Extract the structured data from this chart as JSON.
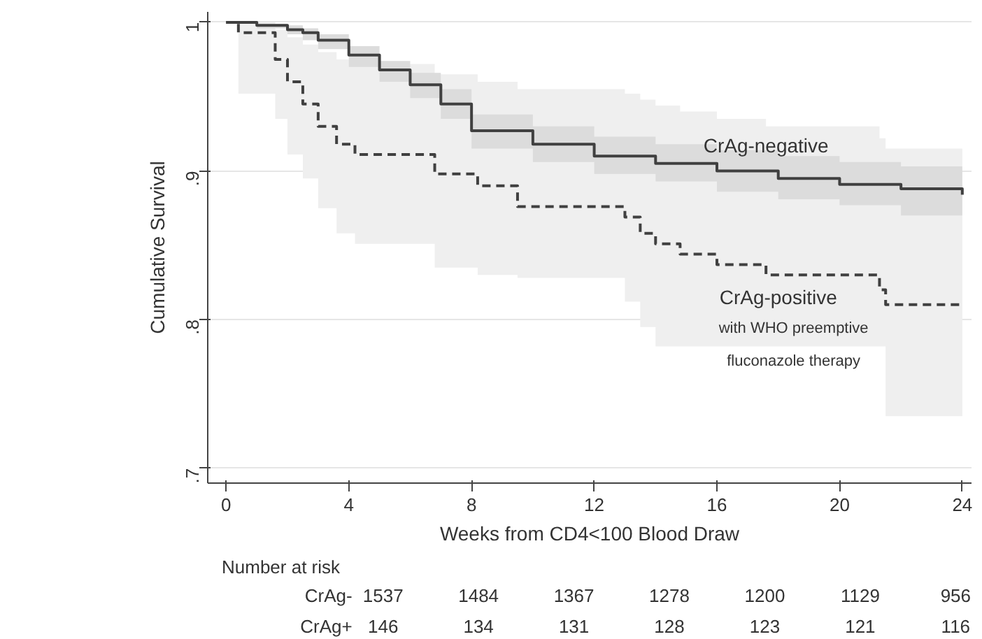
{
  "chart_data": {
    "type": "step",
    "xlabel": "Weeks from CD4<100 Blood Draw",
    "ylabel": "Cumulative Survival",
    "xlim": [
      -0.6,
      24.3
    ],
    "ylim": [
      0.69,
      1.007
    ],
    "xticks": [
      0,
      4,
      8,
      12,
      16,
      20,
      24
    ],
    "yticks": [
      {
        "value": 0.7,
        "label": ".7"
      },
      {
        "value": 0.8,
        "label": ".8"
      },
      {
        "value": 0.9,
        "label": ".9"
      },
      1
    ],
    "grid": "y",
    "series": [
      {
        "name": "CrAg-negative",
        "color": "#404040",
        "line_style": "solid",
        "x": [
          0,
          1,
          2,
          2.5,
          3,
          4,
          5,
          6,
          7,
          8,
          10,
          12,
          14,
          16,
          18,
          20,
          22,
          24
        ],
        "values": [
          1,
          0.998,
          0.995,
          0.993,
          0.988,
          0.978,
          0.968,
          0.958,
          0.945,
          0.927,
          0.918,
          0.91,
          0.905,
          0.9,
          0.895,
          0.891,
          0.888,
          0.884
        ],
        "upper": [
          1,
          0.999,
          0.998,
          0.996,
          0.992,
          0.984,
          0.974,
          0.966,
          0.955,
          0.938,
          0.93,
          0.923,
          0.918,
          0.914,
          0.91,
          0.906,
          0.903,
          0.9
        ],
        "lower": [
          1,
          0.996,
          0.992,
          0.988,
          0.982,
          0.97,
          0.96,
          0.949,
          0.935,
          0.915,
          0.906,
          0.898,
          0.893,
          0.886,
          0.881,
          0.877,
          0.87,
          0.867
        ]
      },
      {
        "name": "CrAg-positive",
        "color": "#404040",
        "line_style": "dashed",
        "x": [
          0,
          0.4,
          1.6,
          2,
          2.5,
          3,
          3.6,
          4.2,
          6.8,
          8.2,
          9.5,
          13,
          13.5,
          14,
          14.8,
          16,
          17.6,
          21.3,
          21.5,
          24
        ],
        "values": [
          1,
          0.993,
          0.975,
          0.96,
          0.945,
          0.93,
          0.918,
          0.911,
          0.898,
          0.89,
          0.876,
          0.869,
          0.858,
          0.851,
          0.844,
          0.837,
          0.83,
          0.82,
          0.81,
          0.81
        ],
        "upper": [
          1,
          1,
          0.995,
          0.99,
          0.985,
          0.98,
          0.975,
          0.972,
          0.965,
          0.96,
          0.955,
          0.952,
          0.948,
          0.944,
          0.94,
          0.935,
          0.93,
          0.922,
          0.915,
          0.913
        ],
        "lower": [
          1,
          0.952,
          0.935,
          0.911,
          0.895,
          0.875,
          0.858,
          0.851,
          0.835,
          0.83,
          0.828,
          0.812,
          0.795,
          0.782,
          0.782,
          0.782,
          0.782,
          0.782,
          0.735,
          0.735
        ]
      }
    ],
    "annotations": [
      "with WHO preemptive",
      "fluconazole therapy",
      "Number at risk",
      "CrAg-",
      "1537",
      "1484",
      "1367",
      "1278",
      "1200",
      "1129",
      "956",
      "CrAg+",
      "146",
      "134",
      "131",
      "128",
      "123",
      "121",
      "116"
    ]
  }
}
